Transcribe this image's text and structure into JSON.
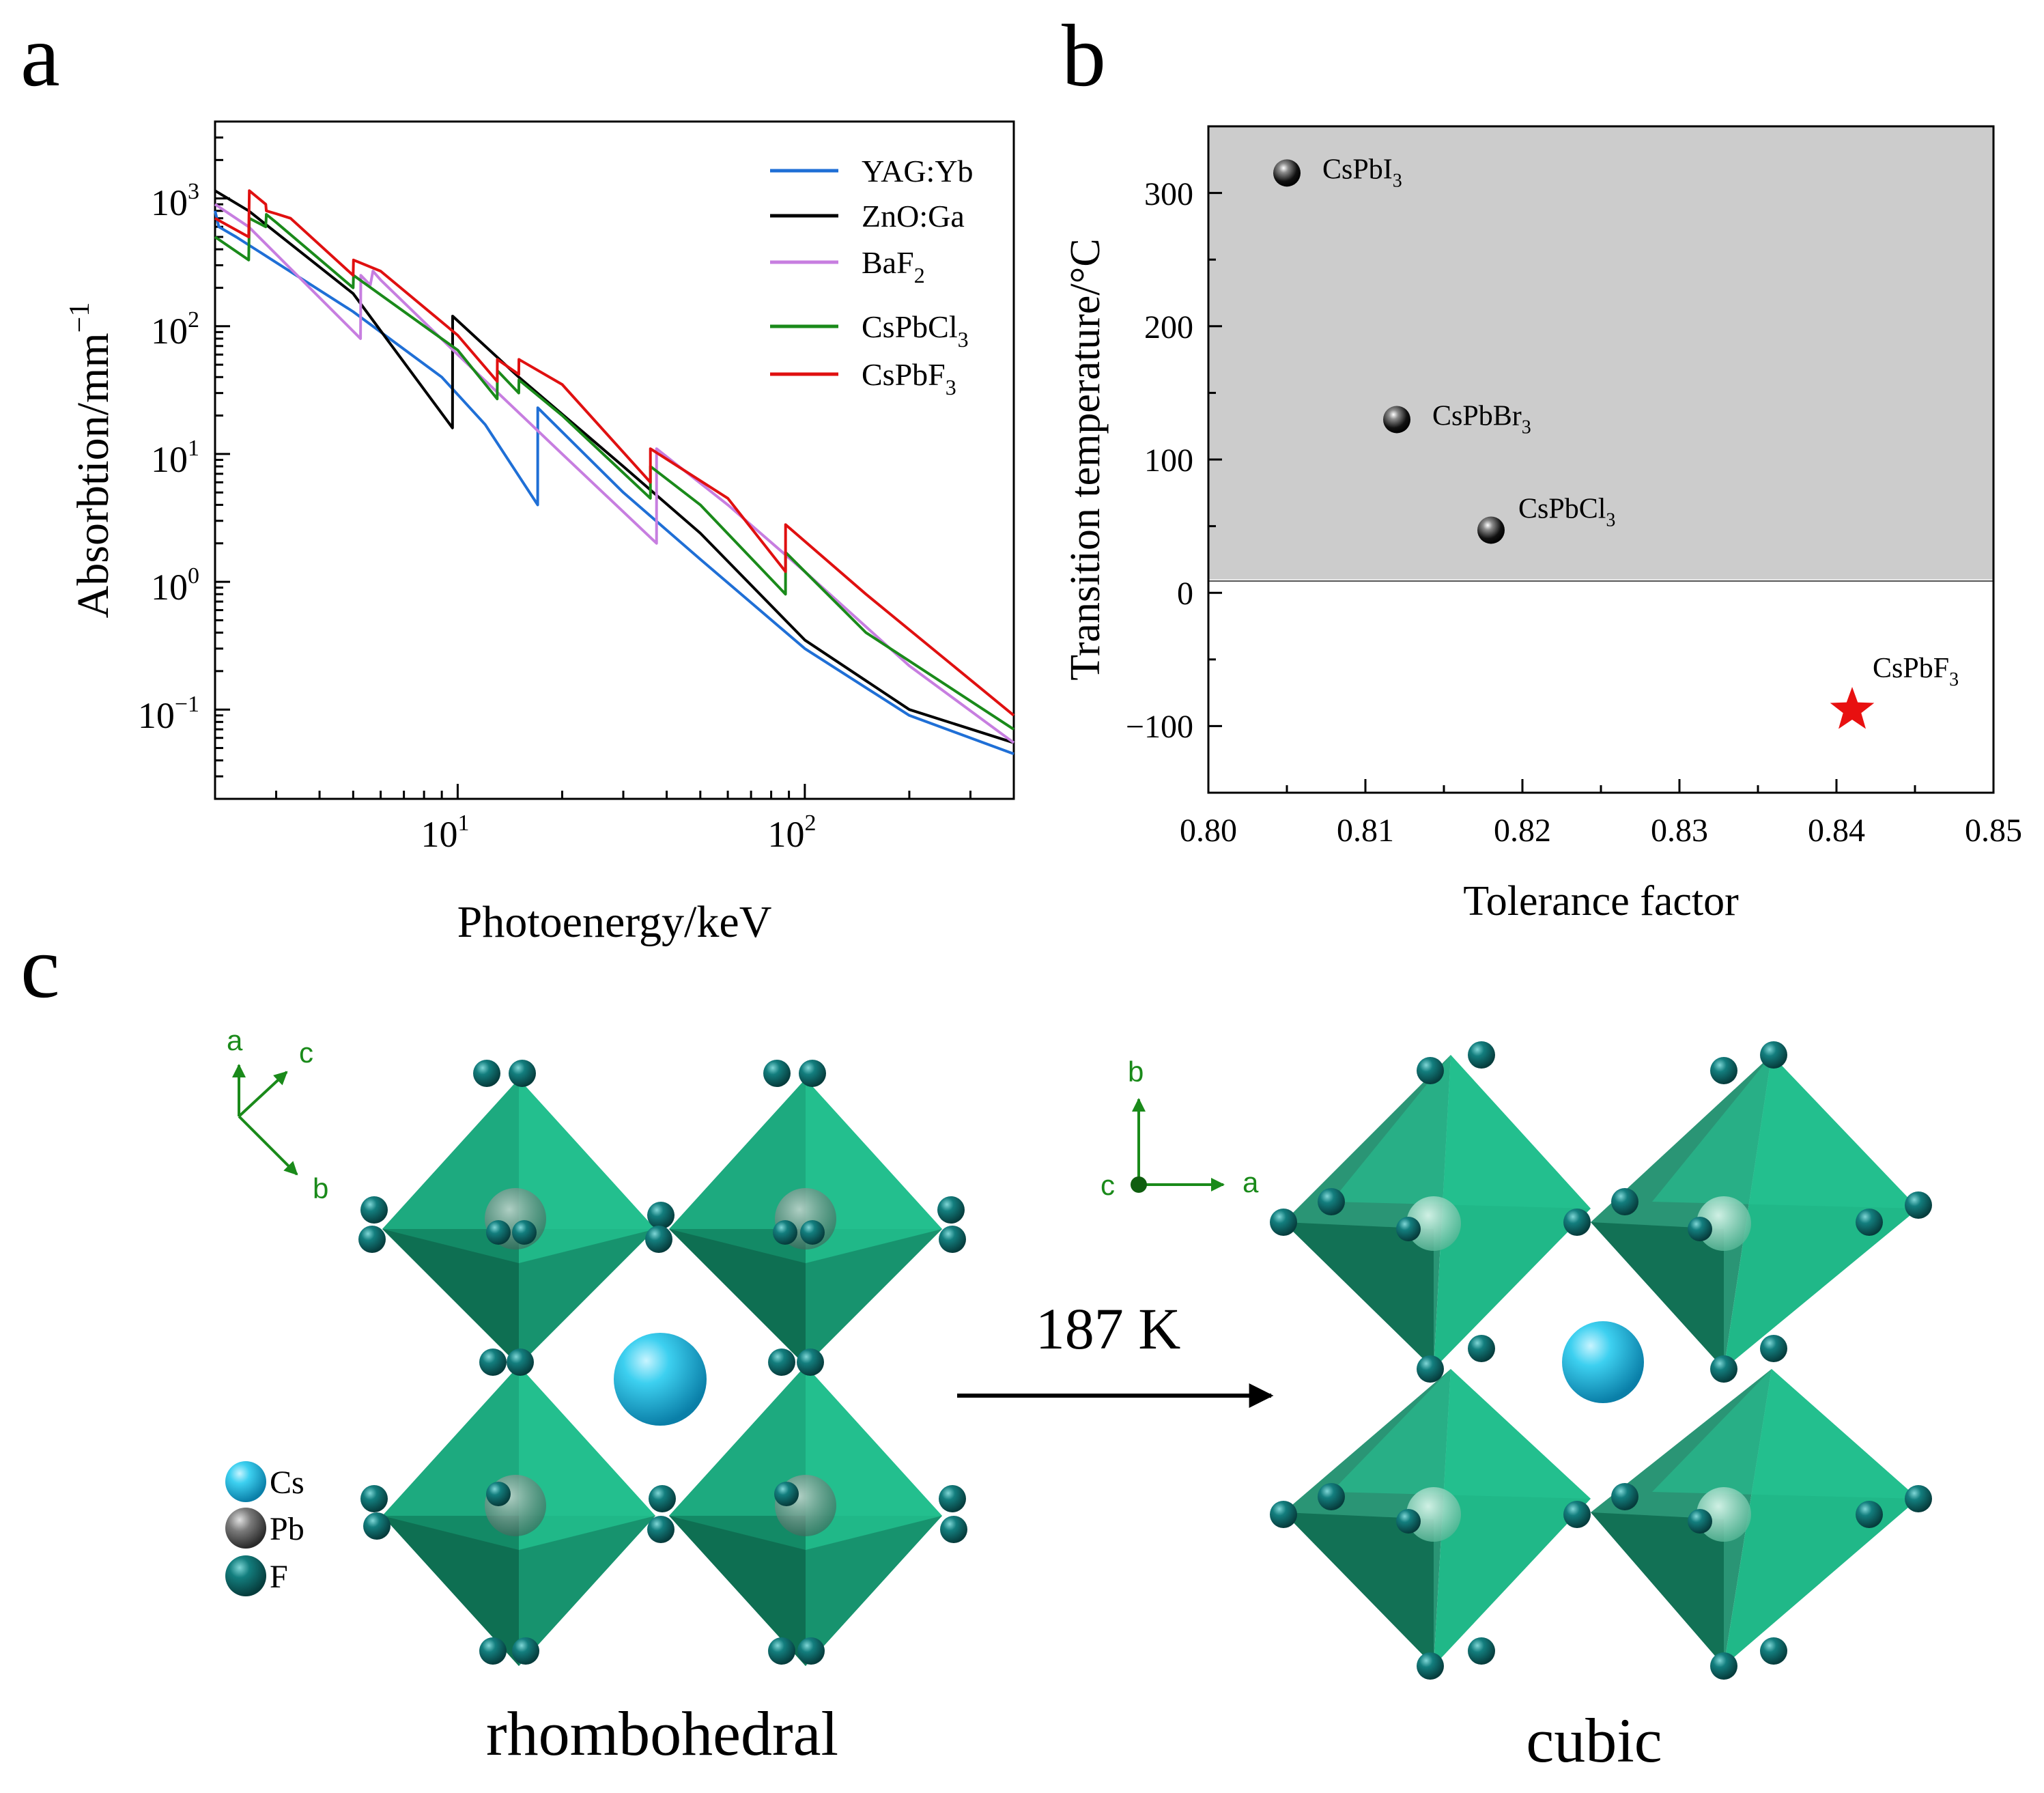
{
  "panel_labels": {
    "a": "a",
    "b": "b",
    "c": "c"
  },
  "chart_data": [
    {
      "type": "line",
      "panel": "a",
      "title": "",
      "xlabel": "Photoenergy/keV",
      "ylabel_main": "Absorbtion/mm",
      "ylabel_sup": "−1",
      "xscale": "log",
      "yscale": "log",
      "xlim": [
        2,
        400
      ],
      "ylim": [
        0.02,
        4000
      ],
      "x_ticks": [
        {
          "base": "10",
          "exp": "1",
          "value": 10
        },
        {
          "base": "10",
          "exp": "2",
          "value": 100
        }
      ],
      "y_ticks": [
        {
          "base": "10",
          "exp": "3",
          "value": 1000
        },
        {
          "base": "10",
          "exp": "2",
          "value": 100
        },
        {
          "base": "10",
          "exp": "1",
          "value": 10
        },
        {
          "base": "10",
          "exp": "0",
          "value": 1
        },
        {
          "base": "10",
          "exp": "−1",
          "value": 0.1
        }
      ],
      "legend_position": "top-right",
      "series": [
        {
          "name": "YAG:Yb",
          "label_main": "YAG:Yb",
          "label_sub": "",
          "color": "#1f6fd6",
          "points": [
            [
              2.0,
              800
            ],
            [
              2.05,
              600
            ],
            [
              2.3,
              500
            ],
            [
              5.0,
              130
            ],
            [
              9.0,
              40
            ],
            [
              12,
              17
            ],
            [
              17,
              4.0
            ],
            [
              17.01,
              23
            ],
            [
              30,
              5
            ],
            [
              50,
              1.5
            ],
            [
              100,
              0.3
            ],
            [
              200,
              0.09
            ],
            [
              400,
              0.045
            ]
          ]
        },
        {
          "name": "ZnO:Ga",
          "label_main": "ZnO:Ga",
          "label_sub": "",
          "color": "#000000",
          "points": [
            [
              2.0,
              1150
            ],
            [
              2.5,
              800
            ],
            [
              5,
              180
            ],
            [
              9.66,
              16
            ],
            [
              9.67,
              120
            ],
            [
              15,
              40
            ],
            [
              30,
              8
            ],
            [
              50,
              2.4
            ],
            [
              100,
              0.35
            ],
            [
              200,
              0.1
            ],
            [
              400,
              0.055
            ]
          ]
        },
        {
          "name": "BaF2",
          "label_main": "BaF",
          "label_sub": "2",
          "color": "#c77ee0",
          "points": [
            [
              2.0,
              900
            ],
            [
              2.5,
              600
            ],
            [
              5.25,
              80
            ],
            [
              5.26,
              250
            ],
            [
              5.6,
              210
            ],
            [
              5.7,
              270
            ],
            [
              6.0,
              230
            ],
            [
              10,
              60
            ],
            [
              20,
              10
            ],
            [
              37.4,
              2.0
            ],
            [
              37.41,
              11
            ],
            [
              60,
              4
            ],
            [
              100,
              1.2
            ],
            [
              200,
              0.22
            ],
            [
              400,
              0.055
            ]
          ]
        },
        {
          "name": "CsPbCl3",
          "label_main": "CsPbCl",
          "label_sub": "3",
          "color": "#1a8a1a",
          "points": [
            [
              2.0,
              500
            ],
            [
              2.5,
              330
            ],
            [
              2.51,
              700
            ],
            [
              2.8,
              600
            ],
            [
              2.81,
              750
            ],
            [
              3.0,
              650
            ],
            [
              5.0,
              200
            ],
            [
              5.01,
              250
            ],
            [
              10,
              65
            ],
            [
              13,
              27
            ],
            [
              13.01,
              45
            ],
            [
              15,
              30
            ],
            [
              15.01,
              38
            ],
            [
              20,
              20
            ],
            [
              35.9,
              4.5
            ],
            [
              35.91,
              8
            ],
            [
              50,
              4
            ],
            [
              88,
              0.8
            ],
            [
              88.01,
              1.7
            ],
            [
              150,
              0.4
            ],
            [
              400,
              0.07
            ]
          ]
        },
        {
          "name": "CsPbF3",
          "label_main": "CsPbF",
          "label_sub": "3",
          "color": "#e01010",
          "points": [
            [
              2.0,
              700
            ],
            [
              2.5,
              500
            ],
            [
              2.51,
              1150
            ],
            [
              2.8,
              900
            ],
            [
              2.81,
              800
            ],
            [
              3.0,
              760
            ],
            [
              3.3,
              700
            ],
            [
              5.0,
              250
            ],
            [
              5.01,
              330
            ],
            [
              6,
              270
            ],
            [
              10,
              85
            ],
            [
              13,
              37
            ],
            [
              13.01,
              55
            ],
            [
              15,
              42
            ],
            [
              15.01,
              55
            ],
            [
              20,
              35
            ],
            [
              35.9,
              6
            ],
            [
              35.91,
              11
            ],
            [
              60,
              4.5
            ],
            [
              88,
              1.2
            ],
            [
              88.01,
              2.8
            ],
            [
              150,
              0.8
            ],
            [
              400,
              0.09
            ]
          ]
        }
      ]
    },
    {
      "type": "scatter",
      "panel": "b",
      "title": "",
      "xlabel": "Tolerance factor",
      "ylabel": "Transition temperature/°C",
      "xlim": [
        0.8,
        0.85
      ],
      "ylim": [
        -150,
        350
      ],
      "x_ticks": [
        "0.80",
        "0.81",
        "0.82",
        "0.83",
        "0.84",
        "0.85"
      ],
      "y_ticks": [
        "−100",
        "0",
        "100",
        "200",
        "300"
      ],
      "shaded_region_y": [
        10,
        350
      ],
      "shade_color": "#cccccc",
      "points": [
        {
          "name": "CsPbI3",
          "label_main": "CsPbI",
          "label_sub": "3",
          "x": 0.805,
          "y": 315,
          "marker": "sphere",
          "color": "#000000"
        },
        {
          "name": "CsPbBr3",
          "label_main": "CsPbBr",
          "label_sub": "3",
          "x": 0.812,
          "y": 130,
          "marker": "sphere",
          "color": "#000000"
        },
        {
          "name": "CsPbCl3",
          "label_main": "CsPbCl",
          "label_sub": "3",
          "x": 0.818,
          "y": 47,
          "marker": "sphere",
          "color": "#000000"
        },
        {
          "name": "CsPbF3",
          "label_main": "CsPbF",
          "label_sub": "3",
          "x": 0.841,
          "y": -88,
          "marker": "star",
          "color": "#e81010"
        }
      ]
    }
  ],
  "panel_c": {
    "left_caption": "rhombohedral",
    "right_caption": "cubic",
    "arrow_label": "187 K",
    "legend": [
      {
        "name": "Cs",
        "label": "Cs",
        "color": "#2cc4e8"
      },
      {
        "name": "Pb",
        "label": "Pb",
        "color": "#6a6a6a"
      },
      {
        "name": "F",
        "label": "F",
        "color": "#0f6e6e"
      }
    ],
    "left_axes": {
      "a": "a",
      "b": "b",
      "c": "c"
    },
    "right_axes": {
      "a": "a",
      "b": "b",
      "c": "c"
    },
    "octahedron_color": "#1aa37a",
    "axis_color": "#1a8a1a"
  }
}
